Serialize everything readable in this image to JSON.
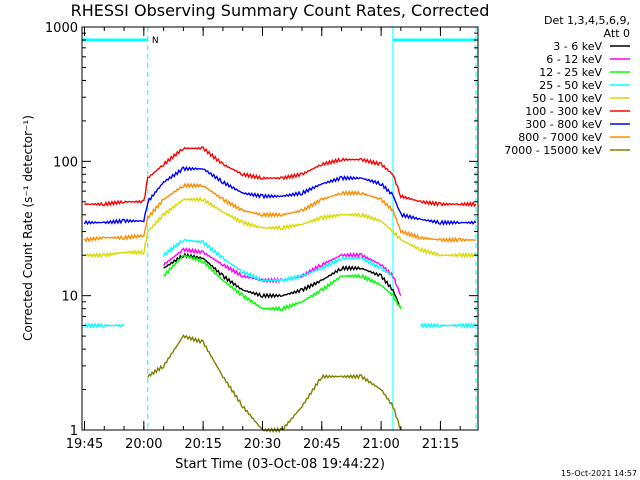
{
  "chart_data": {
    "type": "line",
    "title": "RHESSI Observing Summary Count Rates, Corrected",
    "xlabel": "Start Time (03-Oct-08 19:44:22)",
    "ylabel": "Corrected Count Rate (s⁻¹ detector⁻¹)",
    "yscale": "log",
    "ylim": [
      1,
      1000
    ],
    "xlim": [
      "19:44:22",
      "21:24:30"
    ],
    "x_ticks": [
      "19:45",
      "20:00",
      "20:15",
      "20:30",
      "20:45",
      "21:00",
      "21:15"
    ],
    "y_ticks": [
      {
        "value": 1,
        "label": "1"
      },
      {
        "value": 10,
        "label": "10"
      },
      {
        "value": 100,
        "label": "100"
      },
      {
        "value": 1000,
        "label": "1000"
      }
    ],
    "legend_header": [
      "Det 1,3,4,5,6,9,",
      "Att 0"
    ],
    "legend_position": "top-right, outside plot",
    "x": [
      "19:45",
      "19:50",
      "19:55",
      "20:00",
      "20:01",
      "20:05",
      "20:10",
      "20:15",
      "20:20",
      "20:25",
      "20:30",
      "20:35",
      "20:40",
      "20:45",
      "20:50",
      "20:55",
      "21:00",
      "21:03",
      "21:05",
      "21:10",
      "21:15",
      "21:20",
      "21:24"
    ],
    "series": [
      {
        "name": "3 - 6 keV",
        "color": "#000000",
        "values": [
          null,
          null,
          null,
          null,
          null,
          16,
          20,
          19,
          14,
          11,
          10,
          10,
          11,
          13,
          16,
          16,
          14,
          11,
          8,
          null,
          null,
          null,
          null
        ]
      },
      {
        "name": "6 - 12 keV",
        "color": "#ff00ff",
        "values": [
          null,
          null,
          null,
          null,
          null,
          17,
          22,
          21,
          17,
          14,
          13,
          13,
          14,
          17,
          20,
          20,
          17,
          14,
          10,
          null,
          null,
          null,
          null
        ]
      },
      {
        "name": "12 - 25 keV",
        "color": "#00ff00",
        "values": [
          null,
          null,
          null,
          null,
          null,
          14,
          20,
          18,
          13,
          10,
          8,
          8,
          9,
          11,
          14,
          14,
          12,
          10,
          8,
          null,
          null,
          null,
          null
        ]
      },
      {
        "name": "25 - 50 keV",
        "color": "#00ffff",
        "values": [
          6,
          6,
          6,
          null,
          null,
          20,
          26,
          25,
          19,
          15,
          13,
          13,
          14,
          16,
          19,
          19,
          16,
          14,
          null,
          6,
          6,
          6,
          6
        ]
      },
      {
        "name": "50 - 100 keV",
        "color": "#d9d900",
        "values": [
          20,
          20,
          21,
          21,
          30,
          40,
          52,
          52,
          42,
          35,
          32,
          32,
          34,
          38,
          40,
          40,
          36,
          30,
          26,
          22,
          20,
          20,
          20
        ]
      },
      {
        "name": "100 - 300 keV",
        "color": "#ff0000",
        "values": [
          48,
          48,
          50,
          50,
          75,
          95,
          125,
          125,
          95,
          80,
          75,
          75,
          80,
          95,
          103,
          103,
          95,
          80,
          55,
          50,
          48,
          48,
          48
        ]
      },
      {
        "name": "300 - 800 keV",
        "color": "#0000ff",
        "values": [
          35,
          35,
          36,
          36,
          50,
          70,
          88,
          88,
          70,
          58,
          55,
          55,
          58,
          68,
          75,
          75,
          68,
          56,
          40,
          37,
          35,
          35,
          35
        ]
      },
      {
        "name": "800 - 7000 keV",
        "color": "#ff8c00",
        "values": [
          26,
          27,
          27,
          28,
          38,
          52,
          66,
          66,
          52,
          43,
          40,
          40,
          43,
          52,
          58,
          58,
          52,
          43,
          30,
          27,
          26,
          26,
          26
        ]
      },
      {
        "name": "7000 - 15000 keV",
        "color": "#808000",
        "values": [
          null,
          null,
          null,
          null,
          2.5,
          3,
          5,
          4.5,
          2.5,
          1.5,
          1,
          1,
          1.5,
          2.5,
          2.5,
          2.5,
          2,
          1.5,
          1,
          null,
          null,
          null,
          null
        ]
      }
    ],
    "annotations": [
      {
        "text": "N",
        "x": "20:00"
      }
    ],
    "night_bar": {
      "color": "#00ffff",
      "level": 800,
      "intervals": [
        [
          "19:44:22",
          "20:01"
        ],
        [
          "21:03",
          "21:24"
        ]
      ]
    },
    "dashed_lines_x": [
      "20:01",
      "21:24"
    ],
    "solid_line_x": "21:03",
    "footer": "15-Oct-2021 14:57"
  }
}
